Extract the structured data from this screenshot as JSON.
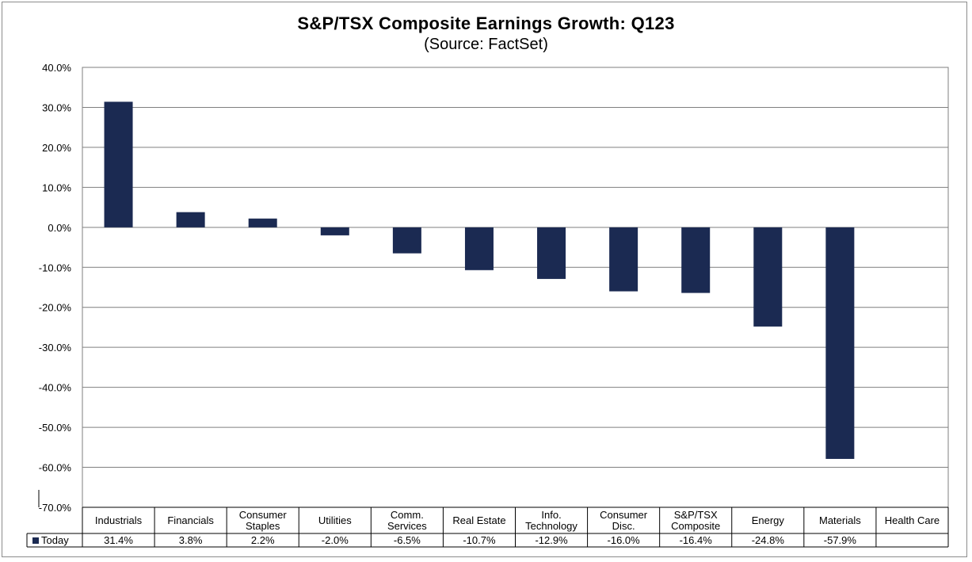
{
  "chart_data": {
    "type": "bar",
    "title": "S&P/TSX Composite Earnings Growth: Q123",
    "subtitle": "(Source: FactSet)",
    "xlabel": "",
    "ylabel": "",
    "ylim": [
      -70,
      40
    ],
    "yticks": [
      "40.0%",
      "30.0%",
      "20.0%",
      "10.0%",
      "0.0%",
      "-10.0%",
      "-20.0%",
      "-30.0%",
      "-40.0%",
      "-50.0%",
      "-60.0%",
      "-70.0%"
    ],
    "grid": true,
    "categories": [
      [
        "Industrials"
      ],
      [
        "Financials"
      ],
      [
        "Consumer",
        "Staples"
      ],
      [
        "Utilities"
      ],
      [
        "Comm.",
        "Services"
      ],
      [
        "Real Estate"
      ],
      [
        "Info.",
        "Technology"
      ],
      [
        "Consumer",
        "Disc."
      ],
      [
        "S&P/TSX",
        "Composite"
      ],
      [
        "Energy"
      ],
      [
        "Materials"
      ],
      [
        "Health Care"
      ]
    ],
    "series": [
      {
        "name": "Today",
        "color": "#1b2a52",
        "values": [
          31.4,
          3.8,
          2.2,
          -2.0,
          -6.5,
          -10.7,
          -12.9,
          -16.0,
          -16.4,
          -24.8,
          -57.9,
          null
        ],
        "labels": [
          "31.4%",
          "3.8%",
          "2.2%",
          "-2.0%",
          "-6.5%",
          "-10.7%",
          "-12.9%",
          "-16.0%",
          "-16.4%",
          "-24.8%",
          "-57.9%",
          ""
        ]
      }
    ]
  }
}
